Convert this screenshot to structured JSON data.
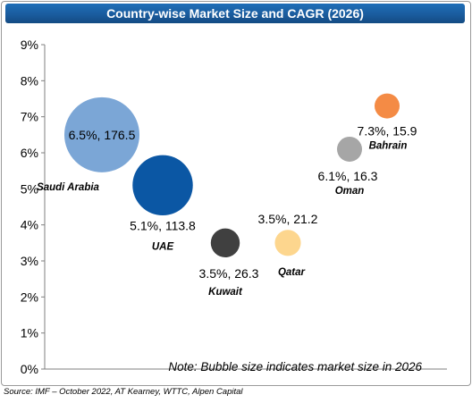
{
  "chart_data": {
    "type": "scatter",
    "title": "Country-wise Market Size and CAGR (2026)",
    "xlabel": "",
    "ylabel": "",
    "ylim": [
      0,
      9
    ],
    "y_ticks": [
      "0%",
      "1%",
      "2%",
      "3%",
      "4%",
      "5%",
      "6%",
      "7%",
      "8%",
      "9%"
    ],
    "grid": false,
    "bubble_size_measure": "market size",
    "points": [
      {
        "country": "Saudi Arabia",
        "x": 1,
        "y": 6.5,
        "size": 176.5,
        "label": "6.5%, 176.5",
        "color": "#7ba6d6"
      },
      {
        "country": "UAE",
        "x": 2,
        "y": 5.1,
        "size": 113.8,
        "label": "5.1%, 113.8",
        "color": "#0b57a4"
      },
      {
        "country": "Kuwait",
        "x": 3,
        "y": 3.5,
        "size": 26.3,
        "label": "3.5%, 26.3",
        "color": "#404040"
      },
      {
        "country": "Qatar",
        "x": 4,
        "y": 3.5,
        "size": 21.2,
        "label": "3.5%, 21.2",
        "color": "#fdd68e"
      },
      {
        "country": "Oman",
        "x": 5,
        "y": 6.1,
        "size": 16.3,
        "label": "6.1%, 16.3",
        "color": "#a6a6a6"
      },
      {
        "country": "Bahrain",
        "x": 6,
        "y": 7.3,
        "size": 15.9,
        "label": "7.3%, 15.9",
        "color": "#f48b45"
      }
    ],
    "note": "Note: Bubble size indicates market size in 2026"
  },
  "source": "Source: IMF – October 2022, AT Kearney, WTTC, Alpen Capital"
}
